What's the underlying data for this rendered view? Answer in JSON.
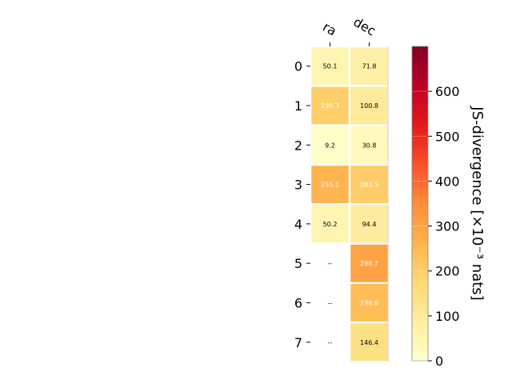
{
  "chart_data": {
    "type": "heatmap",
    "title": "",
    "columns": [
      "ra",
      "dec"
    ],
    "rows": [
      "0",
      "1",
      "2",
      "3",
      "4",
      "5",
      "6",
      "7"
    ],
    "values": [
      [
        50.1,
        71.8
      ],
      [
        199.3,
        100.8
      ],
      [
        9.2,
        30.8
      ],
      [
        255.1,
        203.5
      ],
      [
        50.2,
        94.4
      ],
      [
        null,
        298.7
      ],
      [
        null,
        238.6
      ],
      [
        null,
        146.4
      ]
    ],
    "cell_labels": [
      [
        "50.1",
        "71.8"
      ],
      [
        "199.3",
        "100.8"
      ],
      [
        "9.2",
        "30.8"
      ],
      [
        "255.1",
        "203.5"
      ],
      [
        "50.2",
        "94.4"
      ],
      [
        "--",
        "298.7"
      ],
      [
        "--",
        "238.6"
      ],
      [
        "--",
        "146.4"
      ]
    ],
    "colorbar": {
      "label": "JS-divergence [×10⁻³ nats]",
      "range": [
        0,
        700
      ],
      "ticks": [
        0,
        100,
        200,
        300,
        400,
        500,
        600
      ],
      "tick_labels": [
        "0",
        "100",
        "200",
        "300",
        "400",
        "500",
        "600"
      ],
      "colormap": "YlOrRd"
    },
    "grid": false
  }
}
